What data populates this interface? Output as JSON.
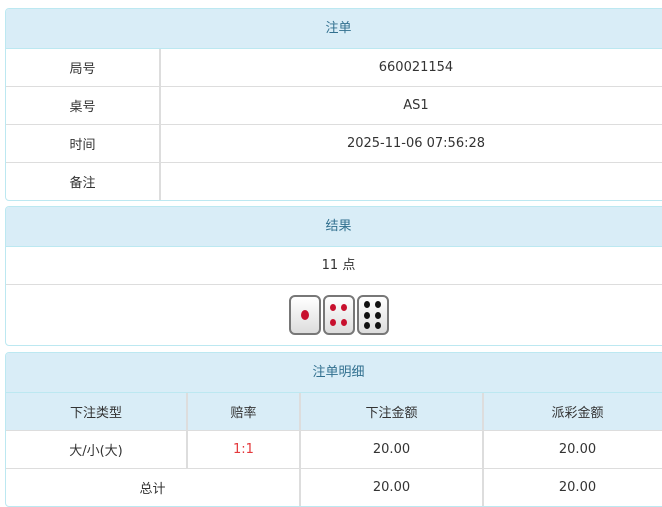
{
  "order": {
    "title": "注单",
    "rows": [
      {
        "label": "局号",
        "value": "660021154"
      },
      {
        "label": "桌号",
        "value": "AS1"
      },
      {
        "label": "时间",
        "value": "2025-11-06 07:56:28"
      },
      {
        "label": "备注",
        "value": ""
      }
    ]
  },
  "result": {
    "title": "结果",
    "points": "11 点",
    "dice": [
      1,
      4,
      6
    ]
  },
  "detail": {
    "title": "注单明细",
    "headers": [
      "下注类型",
      "赔率",
      "下注金额",
      "派彩金额"
    ],
    "rows": [
      {
        "type": "大/小(大)",
        "odds": "1:1",
        "bet": "20.00",
        "payout": "20.00"
      }
    ],
    "total": {
      "label": "总计",
      "bet": "20.00",
      "payout": "20.00"
    }
  },
  "colors": {
    "header_bg": "#d9edf7",
    "header_text": "#31708f",
    "odds": "#e4393c"
  }
}
